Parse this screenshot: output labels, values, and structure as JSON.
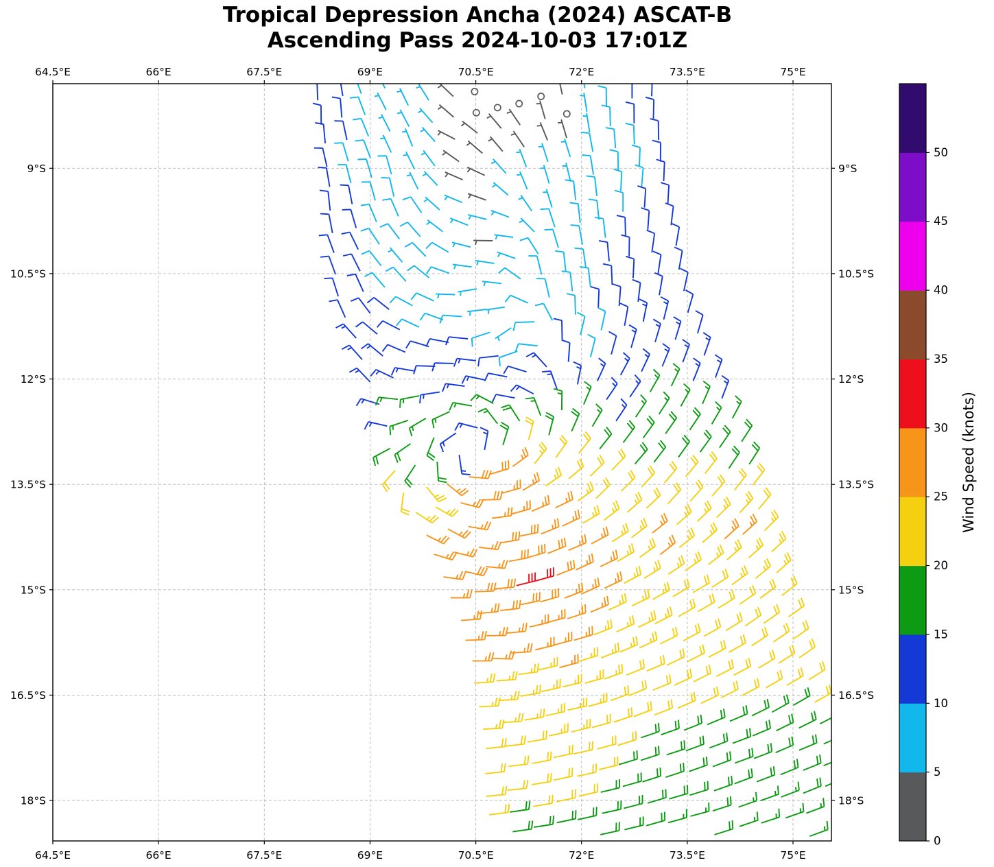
{
  "title": {
    "line1": "Tropical Depression Ancha (2024) ASCAT-B",
    "line2": "Ascending Pass 2024-10-03 17:01Z"
  },
  "axes": {
    "lon_range": [
      64.5,
      75.545
    ],
    "lat_range_s": [
      7.796,
      18.576
    ],
    "lon_ticks": [
      64.5,
      66,
      67.5,
      69,
      70.5,
      72,
      73.5,
      75
    ],
    "lon_tick_labels": [
      "64.5°E",
      "66°E",
      "67.5°E",
      "69°E",
      "70.5°E",
      "72°E",
      "73.5°E",
      "75°E"
    ],
    "lat_ticks": [
      9,
      10.5,
      12,
      13.5,
      15,
      16.5,
      18
    ],
    "lat_tick_labels": [
      "9°S",
      "10.5°S",
      "12°S",
      "13.5°S",
      "15°S",
      "16.5°S",
      "18°S"
    ],
    "grid_color": "#b8b8b8",
    "frame_color": "#000000"
  },
  "colorbar": {
    "label": "Wind Speed (knots)",
    "tick_values": [
      0,
      5,
      10,
      15,
      20,
      25,
      30,
      35,
      40,
      45,
      50
    ],
    "bin_edges_kt": [
      0,
      5,
      10,
      15,
      20,
      25,
      30,
      35,
      40,
      45,
      50,
      55
    ],
    "bin_colors": [
      "#58595b",
      "#12b7ec",
      "#1539d6",
      "#0d9b13",
      "#f5d011",
      "#f7941a",
      "#ee0f1c",
      "#8b4a2b",
      "#ee00ee",
      "#7d0dc8",
      "#320b6e"
    ]
  },
  "chart_data": {
    "type": "wind_barb_map",
    "storm": "Tropical Depression Ancha (2024)",
    "pass": "ASCAT-B Ascending 2024-10-03 17:01Z",
    "units": "knots",
    "hemisphere": "southern",
    "vortex_center": {
      "lon_e": 70.45,
      "lat_s": 12.95
    },
    "max_wind_kt": 32,
    "calm_threshold_kt": 2.5,
    "swath_left_edge": [
      [
        7.5,
        68.13
      ],
      [
        9,
        68.27
      ],
      [
        10.3,
        68.4
      ],
      [
        11,
        68.66
      ],
      [
        12.1,
        69.05
      ],
      [
        13,
        69.25
      ],
      [
        13.5,
        69.54
      ],
      [
        14.5,
        69.98
      ],
      [
        15.5,
        70.29
      ],
      [
        16.5,
        70.46
      ],
      [
        19,
        70.58
      ]
    ],
    "swath_right_edge": [
      [
        7.5,
        73.03
      ],
      [
        9.5,
        73.28
      ],
      [
        11.5,
        73.62
      ],
      [
        13.5,
        74.48
      ],
      [
        15.5,
        74.95
      ],
      [
        16.5,
        75.23
      ],
      [
        17.2,
        75.52
      ],
      [
        19,
        75.7
      ]
    ],
    "grid": {
      "rows": 38,
      "cols": 16,
      "lat_start_s": 7.55,
      "lat_step": 0.308,
      "cross_tilt": 0.218,
      "clip_lat_min": 7.85,
      "clip_lat_max": 18.52,
      "clip_lon_max": 75.49
    },
    "anchors_format": [
      "lon_e",
      "lat_s",
      "speed_kt",
      "direction_toward_deg"
    ],
    "anchors": [
      [
        70.6,
        8.0,
        1,
        120
      ],
      [
        71.15,
        8.05,
        1,
        150
      ],
      [
        71.65,
        8.15,
        2,
        170
      ],
      [
        70.25,
        8.6,
        4,
        115
      ],
      [
        70.9,
        8.6,
        4,
        140
      ],
      [
        71.4,
        9.1,
        5,
        165
      ],
      [
        70.5,
        9.3,
        4.5,
        105
      ],
      [
        70.8,
        10.0,
        4.5,
        90
      ],
      [
        70.5,
        10.8,
        5,
        80
      ],
      [
        71.0,
        11.35,
        5,
        55
      ],
      [
        69.95,
        8.5,
        5,
        135
      ],
      [
        69.6,
        8.2,
        6,
        155
      ],
      [
        69.7,
        8.7,
        7,
        160
      ],
      [
        69.3,
        9.3,
        8,
        168
      ],
      [
        69.5,
        10.4,
        7,
        140
      ],
      [
        69.7,
        11.2,
        9,
        115
      ],
      [
        70.1,
        11.9,
        11,
        90
      ],
      [
        71.0,
        12.2,
        10,
        95
      ],
      [
        71.7,
        10.6,
        8,
        175
      ],
      [
        72.1,
        11.5,
        9,
        195
      ],
      [
        72.0,
        9.6,
        8,
        175
      ],
      [
        72.5,
        8.2,
        10,
        180
      ],
      [
        73.0,
        8.1,
        12,
        182
      ],
      [
        72.8,
        9.3,
        10,
        185
      ],
      [
        73.3,
        10.2,
        11,
        190
      ],
      [
        73.7,
        11.2,
        12,
        196
      ],
      [
        72.5,
        12.3,
        13,
        215
      ],
      [
        73.9,
        12.1,
        14,
        200
      ],
      [
        68.3,
        8.3,
        12,
        180
      ],
      [
        68.45,
        9.6,
        12,
        174
      ],
      [
        68.6,
        10.8,
        12,
        163
      ],
      [
        68.9,
        11.9,
        13,
        140
      ],
      [
        69.15,
        12.6,
        14,
        110
      ],
      [
        70.45,
        12.25,
        16,
        100
      ],
      [
        70.95,
        12.5,
        18,
        140
      ],
      [
        71.15,
        12.95,
        22,
        195
      ],
      [
        71.05,
        13.35,
        28,
        235
      ],
      [
        70.6,
        13.55,
        30,
        270
      ],
      [
        70.1,
        13.45,
        26,
        310
      ],
      [
        69.85,
        12.95,
        20,
        15
      ],
      [
        70.0,
        12.5,
        16,
        60
      ],
      [
        70.75,
        13.3,
        32,
        250
      ],
      [
        70.5,
        13.35,
        31,
        275
      ],
      [
        70.45,
        12.78,
        12,
        95
      ],
      [
        70.62,
        12.95,
        14,
        190
      ],
      [
        70.45,
        13.12,
        16,
        280
      ],
      [
        70.28,
        12.95,
        12,
        10
      ],
      [
        70.45,
        12.95,
        6,
        130
      ],
      [
        69.4,
        12.9,
        17,
        70
      ],
      [
        69.4,
        13.15,
        21,
        40
      ],
      [
        70.0,
        14.1,
        27,
        300
      ],
      [
        70.4,
        14.6,
        28,
        285
      ],
      [
        71.0,
        14.3,
        28,
        260
      ],
      [
        71.6,
        14.0,
        26,
        245
      ],
      [
        72.3,
        13.6,
        22,
        225
      ],
      [
        73.3,
        13.0,
        18,
        215
      ],
      [
        74.3,
        13.2,
        18,
        212
      ],
      [
        73.3,
        13.5,
        21,
        220
      ],
      [
        74.4,
        13.6,
        22,
        218
      ],
      [
        71.5,
        14.5,
        30,
        248
      ],
      [
        71.2,
        14.9,
        31,
        255
      ],
      [
        70.8,
        15.1,
        29,
        265
      ],
      [
        72.0,
        14.8,
        27,
        245
      ],
      [
        73.1,
        14.3,
        26,
        232
      ],
      [
        74.1,
        14.2,
        26,
        228
      ],
      [
        74.9,
        14.6,
        25,
        228
      ],
      [
        70.7,
        15.9,
        26,
        272
      ],
      [
        71.6,
        15.7,
        27,
        255
      ],
      [
        72.6,
        15.4,
        24,
        245
      ],
      [
        73.6,
        15.2,
        22,
        240
      ],
      [
        74.6,
        15.5,
        21,
        235
      ],
      [
        75.3,
        15.9,
        21,
        235
      ],
      [
        70.7,
        16.8,
        23,
        268
      ],
      [
        71.7,
        16.6,
        24,
        258
      ],
      [
        72.8,
        16.4,
        22,
        248
      ],
      [
        73.8,
        16.2,
        21,
        243
      ],
      [
        74.9,
        16.5,
        20,
        240
      ],
      [
        70.8,
        17.8,
        21,
        265
      ],
      [
        71.9,
        17.6,
        21,
        258
      ],
      [
        73.0,
        17.4,
        19,
        252
      ],
      [
        74.1,
        17.3,
        18,
        250
      ],
      [
        75.2,
        17.5,
        18,
        248
      ],
      [
        71.0,
        18.4,
        19,
        262
      ],
      [
        72.2,
        18.3,
        18,
        258
      ],
      [
        73.4,
        18.3,
        17,
        255
      ],
      [
        74.6,
        18.4,
        16,
        252
      ],
      [
        75.4,
        18.5,
        16,
        250
      ]
    ]
  }
}
